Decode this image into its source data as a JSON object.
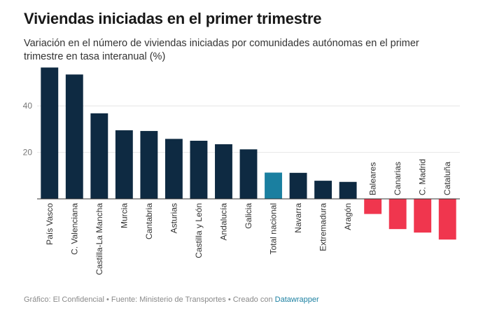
{
  "title": "Viviendas iniciadas en el primer trimestre",
  "subtitle": "Variación en el número de viviendas iniciadas por comunidades autónomas en el primer trimestre en tasa interanual (%)",
  "footer": {
    "prefix": "Gráfico: El Confidencial • Fuente: Ministerio de Transportes • Creado con ",
    "link": "Datawrapper"
  },
  "chart_data": {
    "type": "bar",
    "categories": [
      "País Vasco",
      "C. Valenciana",
      "Castilla-La Mancha",
      "Murcia",
      "Cantabria",
      "Asturias",
      "Castilla y León",
      "Andalucía",
      "Galicia",
      "Total nacional",
      "Navarra",
      "Extremadura",
      "Aragón",
      "Baleares",
      "Canarias",
      "C. Madrid",
      "Cataluña"
    ],
    "values": [
      56.5,
      53.5,
      36.8,
      29.5,
      29.2,
      25.8,
      25.0,
      23.5,
      21.3,
      11.3,
      11.2,
      7.8,
      7.3,
      -6.5,
      -13.0,
      -14.5,
      -17.5
    ],
    "ylim": [
      -20,
      58
    ],
    "yticks": [
      20,
      40
    ],
    "grid": true,
    "colors": {
      "positive": "#0e2a42",
      "highlight": "#1a7fa0",
      "negative": "#f0364e",
      "grid": "#e6e6e6",
      "axis": "#333333",
      "tick_label": "#777777"
    },
    "highlight_category": "Total nacional"
  }
}
